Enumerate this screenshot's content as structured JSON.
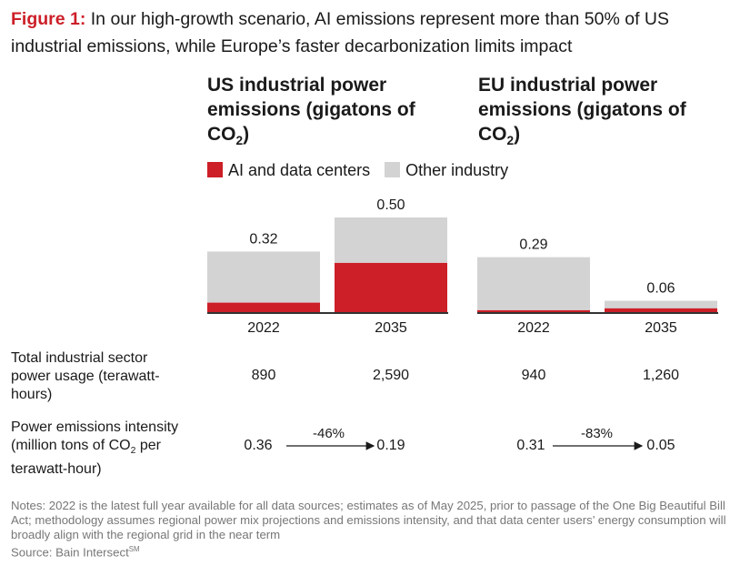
{
  "title": {
    "prefix": "Figure 1:",
    "text": "In our high-growth scenario, AI emissions represent more than 50% of US industrial emissions, while Europe’s faster decarbonization limits impact"
  },
  "panels": [
    {
      "title_main": "US industrial power emissions (gigatons of CO",
      "title_sub": "2",
      "title_end": ")"
    },
    {
      "title_main": "EU industrial power emissions (gigatons of CO",
      "title_sub": "2",
      "title_end": ")"
    }
  ],
  "colors": {
    "ai": "#cc1f28",
    "other": "#d3d3d3",
    "axis": "#333333"
  },
  "chart_data": {
    "type": "bar",
    "stacked": true,
    "categories": [
      "US 2022",
      "US 2035",
      "EU 2022",
      "EU 2035"
    ],
    "tick_labels": [
      "2022",
      "2035",
      "2022",
      "2035"
    ],
    "totals": [
      "0.32",
      "0.50",
      "0.29",
      "0.06"
    ],
    "series": [
      {
        "name": "AI and data centers",
        "values": [
          0.05,
          0.26,
          0.01,
          0.02
        ]
      },
      {
        "name": "Other industry",
        "values": [
          0.27,
          0.24,
          0.28,
          0.04
        ]
      }
    ],
    "ylim": [
      0,
      0.5
    ]
  },
  "rows": {
    "usage": {
      "label": "Total industrial sector power usage (terawatt-hours)",
      "values": [
        "890",
        "2,590",
        "940",
        "1,260"
      ]
    },
    "intensity": {
      "label_a": "Power emissions intensity (million tons of CO",
      "label_sub": "2",
      "label_b": " per terawatt-hour)",
      "values": [
        "0.36",
        "0.19",
        "0.31",
        "0.05"
      ],
      "changes": [
        "-46%",
        "-83%"
      ]
    }
  },
  "notes": "Notes: 2022 is the latest full year available for all data sources; estimates as of May 2025, prior to passage of the One Big Beautiful Bill Act; methodology assumes regional power mix projections and emissions intensity, and that data center users’ energy consumption will broadly align with the regional grid in the near term",
  "source": "Source: Bain Intersect",
  "source_sup": "SM"
}
